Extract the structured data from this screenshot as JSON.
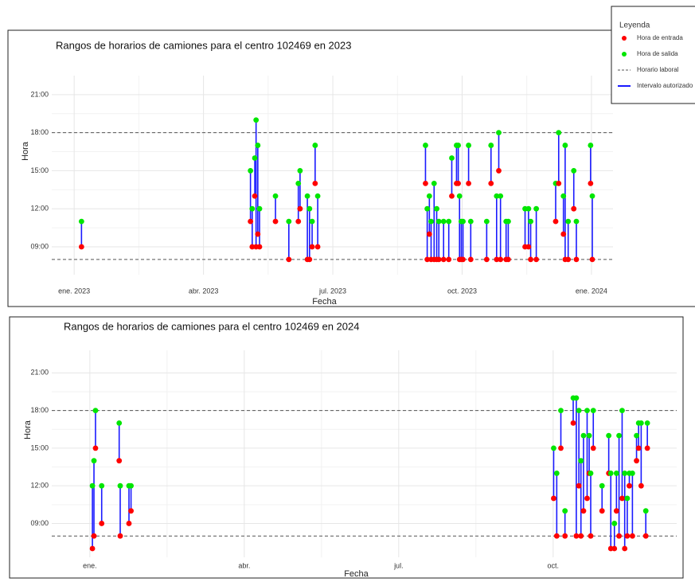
{
  "legend": {
    "title": "Leyenda",
    "items": [
      {
        "name": "Hora de entrada",
        "style": "point",
        "color": "#ff0000"
      },
      {
        "name": "Hora de salida",
        "style": "point",
        "color": "#00e600"
      },
      {
        "name": "Horario laboral",
        "style": "dashed",
        "color": "#555555"
      },
      {
        "name": "Intervalo autorizado",
        "style": "line",
        "color": "#1a1aff"
      }
    ]
  },
  "chart_data": [
    {
      "type": "range",
      "title": "Rangos de horarios de camiones para el centro 102469 en 2023",
      "x_label": "Fecha",
      "y_label": "Hora",
      "grid": true,
      "xlim": [
        0.48,
        13.5
      ],
      "ylim": [
        6.8,
        22.5
      ],
      "xticks": [
        {
          "value": 1,
          "label": "ene. 2023"
        },
        {
          "value": 4,
          "label": "abr. 2023"
        },
        {
          "value": 7,
          "label": "jul. 2023"
        },
        {
          "value": 10,
          "label": "oct. 2023"
        },
        {
          "value": 13,
          "label": "ene. 2024"
        }
      ],
      "yticks": [
        {
          "value": 9,
          "label": "09:00"
        },
        {
          "value": 12,
          "label": "12:00"
        },
        {
          "value": 15,
          "label": "15:00"
        },
        {
          "value": 18,
          "label": "18:00"
        },
        {
          "value": 21,
          "label": "21:00"
        }
      ],
      "hlines": [
        8,
        18
      ],
      "x": [
        1.17,
        5.09,
        5.13,
        5.19,
        5.22,
        5.26,
        5.3,
        5.67,
        5.98,
        6.2,
        6.24,
        6.41,
        6.46,
        6.52,
        6.59,
        6.65,
        9.15,
        9.19,
        9.24,
        9.28,
        9.35,
        9.41,
        9.46,
        9.57,
        9.69,
        9.76,
        9.87,
        9.91,
        9.94,
        9.98,
        10.02,
        10.15,
        10.2,
        10.57,
        10.67,
        10.8,
        10.85,
        10.89,
        11.02,
        11.07,
        11.46,
        11.54,
        11.59,
        11.72,
        12.17,
        12.24,
        12.35,
        12.39,
        12.46,
        12.59,
        12.65,
        12.98,
        13.02
      ],
      "start": [
        9,
        11,
        9,
        13,
        9,
        10,
        9,
        11,
        8,
        11,
        12,
        8,
        8,
        9,
        14,
        9,
        14,
        8,
        10,
        8,
        8,
        8,
        8,
        8,
        8,
        13,
        14,
        14,
        8,
        8,
        8,
        14,
        8,
        8,
        14,
        8,
        15,
        8,
        8,
        8,
        9,
        9,
        8,
        8,
        11,
        14,
        10,
        8,
        8,
        12,
        8,
        14,
        8
      ],
      "end": [
        11,
        15,
        12,
        16,
        19,
        17,
        12,
        13,
        11,
        14,
        15,
        13,
        12,
        11,
        17,
        13,
        17,
        12,
        13,
        11,
        14,
        12,
        11,
        11,
        11,
        16,
        17,
        17,
        13,
        11,
        11,
        17,
        11,
        11,
        17,
        13,
        18,
        13,
        11,
        11,
        12,
        12,
        11,
        12,
        14,
        18,
        13,
        17,
        11,
        15,
        11,
        17,
        13
      ]
    },
    {
      "type": "range",
      "title": "Rangos de horarios de camiones para el centro 102469 en 2024",
      "x_label": "Fecha",
      "y_label": "Hora",
      "grid": true,
      "xlim": [
        0.26,
        12.4
      ],
      "ylim": [
        6.3,
        22.8
      ],
      "xticks": [
        {
          "value": 1,
          "label": "ene."
        },
        {
          "value": 4,
          "label": "abr."
        },
        {
          "value": 7,
          "label": "jul."
        },
        {
          "value": 10,
          "label": "oct."
        }
      ],
      "yticks": [
        {
          "value": 9,
          "label": "09:00"
        },
        {
          "value": 12,
          "label": "12:00"
        },
        {
          "value": 15,
          "label": "15:00"
        },
        {
          "value": 18,
          "label": "18:00"
        },
        {
          "value": 21,
          "label": "21:00"
        }
      ],
      "hlines": [
        8,
        18
      ],
      "x": [
        1.05,
        1.08,
        1.11,
        1.23,
        1.57,
        1.59,
        1.76,
        1.8,
        10.01,
        10.07,
        10.15,
        10.23,
        10.39,
        10.45,
        10.5,
        10.54,
        10.59,
        10.66,
        10.7,
        10.73,
        10.78,
        10.95,
        11.08,
        11.12,
        11.19,
        11.23,
        11.28,
        11.34,
        11.39,
        11.44,
        11.48,
        11.54,
        11.62,
        11.66,
        11.71,
        11.8,
        11.83
      ],
      "start": [
        7,
        8,
        15,
        9,
        14,
        8,
        9,
        10,
        11,
        8,
        15,
        8,
        17,
        8,
        12,
        8,
        10,
        11,
        13,
        8,
        15,
        10,
        13,
        7,
        7,
        10,
        8,
        11,
        7,
        8,
        12,
        8,
        14,
        15,
        12,
        8,
        15
      ],
      "end": [
        12,
        14,
        18,
        12,
        17,
        12,
        12,
        12,
        15,
        13,
        18,
        10,
        19,
        19,
        18,
        14,
        16,
        18,
        16,
        13,
        18,
        12,
        16,
        13,
        9,
        13,
        16,
        18,
        13,
        11,
        13,
        13,
        16,
        17,
        17,
        10,
        17
      ]
    }
  ]
}
